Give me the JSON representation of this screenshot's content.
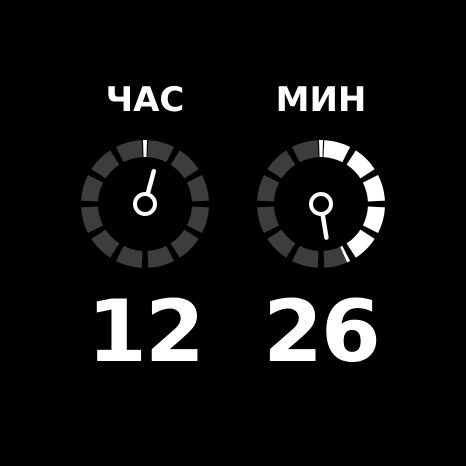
{
  "hour": {
    "label": "ЧАС",
    "value": "12",
    "progress_fraction": 0.0
  },
  "minute": {
    "label": "МИН",
    "value": "26",
    "progress_fraction": 0.433
  },
  "colors": {
    "background": "#000000",
    "text": "#ffffff",
    "segment_inactive": "#3d3d3d",
    "segment_active": "#ffffff"
  },
  "icons": {
    "hour_dial": "hour-progress-dial",
    "minute_dial": "minute-progress-dial"
  }
}
